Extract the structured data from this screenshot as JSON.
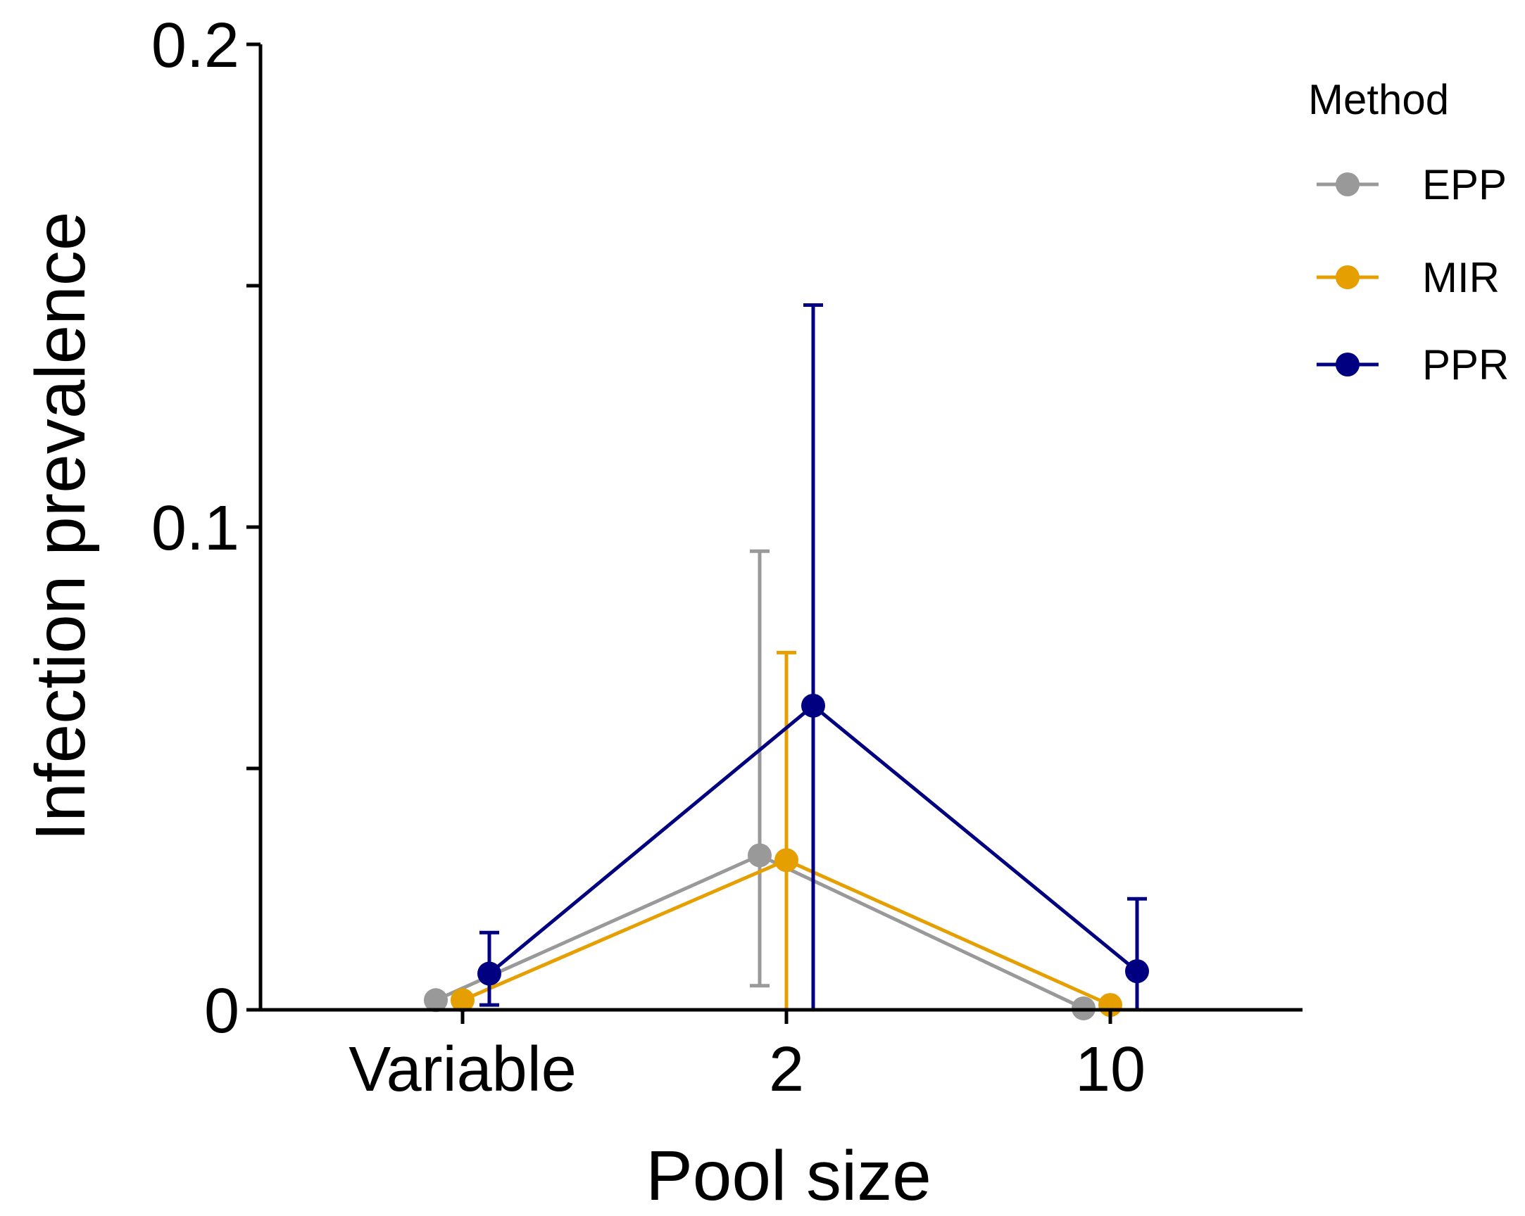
{
  "chart_data": {
    "type": "line",
    "title": "",
    "xlabel": "Pool size",
    "ylabel": "Infection prevalence",
    "categories": [
      "Variable",
      "2",
      "10"
    ],
    "ylim": [
      0,
      0.2
    ],
    "yticks": [
      0,
      0.05,
      0.1,
      0.15,
      0.2
    ],
    "ytick_labels": [
      "0",
      "",
      "0.1",
      "",
      "0.2"
    ],
    "legend": {
      "title": "Method",
      "position": "right"
    },
    "series": [
      {
        "name": "EPP",
        "color": "#999999",
        "values": [
          0.002,
          0.032,
          0.0003
        ],
        "lower": [
          null,
          0.005,
          null
        ],
        "upper": [
          null,
          0.095,
          null
        ]
      },
      {
        "name": "MIR",
        "color": "#E69F00",
        "values": [
          0.002,
          0.031,
          0.001
        ],
        "lower": [
          null,
          0.0,
          null
        ],
        "upper": [
          null,
          0.074,
          null
        ]
      },
      {
        "name": "PPR",
        "color": "#000080",
        "values": [
          0.0075,
          0.063,
          0.008
        ],
        "lower": [
          0.001,
          0.0,
          0.0
        ],
        "upper": [
          0.016,
          0.146,
          0.023
        ]
      }
    ]
  }
}
